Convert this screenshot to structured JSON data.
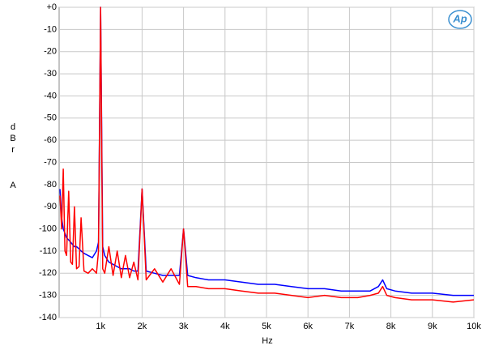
{
  "chart_data": {
    "type": "line",
    "xlabel": "Hz",
    "ylabel": "dBr",
    "ylabel_unit": "A",
    "logo": "Ap",
    "x": [
      20,
      60,
      100,
      140,
      180,
      230,
      280,
      320,
      370,
      420,
      480,
      530,
      600,
      700,
      800,
      900,
      950,
      1000,
      1050,
      1100,
      1200,
      1300,
      1400,
      1500,
      1600,
      1700,
      1800,
      1900,
      2000,
      2100,
      2300,
      2500,
      2700,
      2900,
      3000,
      3100,
      3300,
      3600,
      4000,
      4400,
      4800,
      5200,
      5600,
      6000,
      6400,
      6800,
      7200,
      7500,
      7700,
      7800,
      7900,
      8100,
      8500,
      9000,
      9500,
      10000
    ],
    "series": [
      {
        "color": "#0000ff",
        "values": [
          -82,
          -95,
          -100,
          -102,
          -104,
          -105,
          -106,
          -107,
          -108,
          -108,
          -109,
          -110,
          -111,
          -112,
          -113,
          -110,
          -106,
          0,
          -108,
          -112,
          -115,
          -116,
          -117,
          -118,
          -118,
          -118,
          -119,
          -119,
          -82,
          -119,
          -120,
          -121,
          -121,
          -121,
          -100,
          -121,
          -122,
          -123,
          -123,
          -124,
          -125,
          -125,
          -126,
          -127,
          -127,
          -128,
          -128,
          -128,
          -126,
          -123,
          -127,
          -128,
          -129,
          -129,
          -130,
          -130
        ]
      },
      {
        "color": "#ff0000",
        "values": [
          -85,
          -100,
          -73,
          -110,
          -112,
          -83,
          -115,
          -116,
          -90,
          -118,
          -117,
          -95,
          -119,
          -120,
          -118,
          -120,
          -110,
          0,
          -118,
          -120,
          -108,
          -121,
          -110,
          -122,
          -112,
          -122,
          -115,
          -123,
          -82,
          -123,
          -118,
          -124,
          -118,
          -125,
          -100,
          -126,
          -126,
          -127,
          -127,
          -128,
          -129,
          -129,
          -130,
          -131,
          -130,
          -131,
          -131,
          -130,
          -129,
          -126,
          -130,
          -131,
          -132,
          -132,
          -133,
          -132
        ]
      }
    ],
    "xlim": [
      0,
      10000
    ],
    "xticks": [
      {
        "value": 1000,
        "label": "1k"
      },
      {
        "value": 2000,
        "label": "2k"
      },
      {
        "value": 3000,
        "label": "3k"
      },
      {
        "value": 4000,
        "label": "4k"
      },
      {
        "value": 5000,
        "label": "5k"
      },
      {
        "value": 6000,
        "label": "6k"
      },
      {
        "value": 7000,
        "label": "7k"
      },
      {
        "value": 8000,
        "label": "8k"
      },
      {
        "value": 9000,
        "label": "9k"
      },
      {
        "value": 10000,
        "label": "10k"
      }
    ],
    "ylim": [
      -140,
      0
    ],
    "yticks": [
      {
        "value": 0,
        "label": "+0"
      },
      -10,
      -20,
      -30,
      -40,
      -50,
      -60,
      -70,
      -80,
      -90,
      -100,
      -110,
      -120,
      -130,
      -140
    ],
    "grid": true
  }
}
